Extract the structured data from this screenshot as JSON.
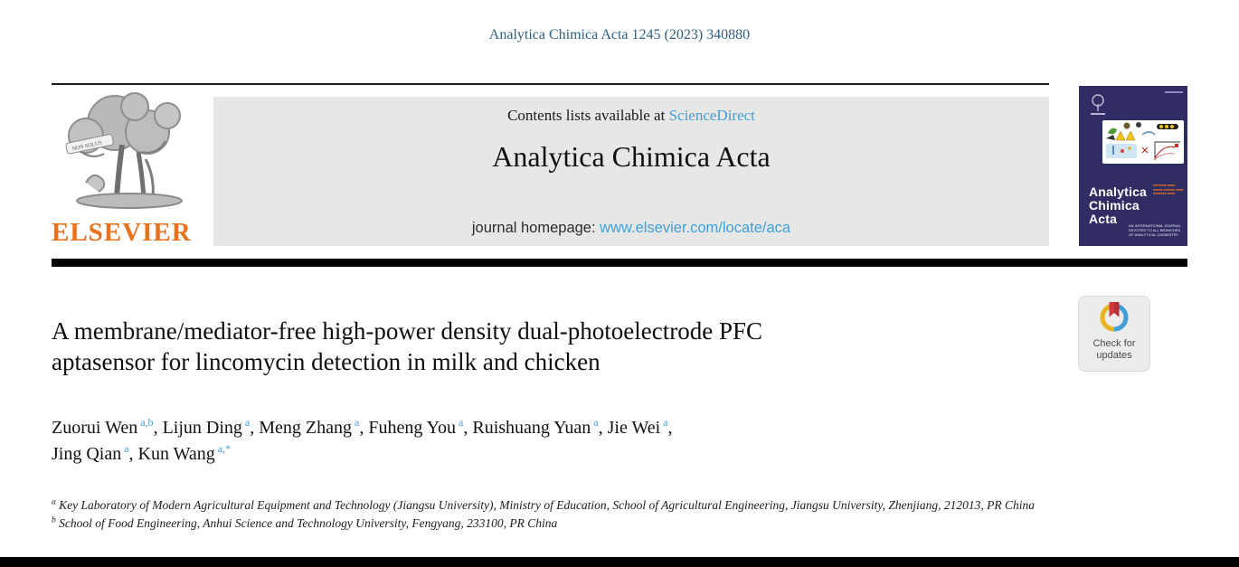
{
  "page": {
    "citation": "Analytica Chimica Acta 1245 (2023) 340880"
  },
  "publisher": {
    "name": "ELSEVIER",
    "motto": "NON SOLUS",
    "orange": "#e9711c"
  },
  "banner": {
    "contents_prefix": "Contents lists available at ",
    "sciencedirect_link": "ScienceDirect",
    "journal_title": "Analytica Chimica Acta",
    "homepage_prefix": "journal homepage: ",
    "homepage_url": "www.elsevier.com/locate/aca",
    "background": "#e7e7e5",
    "link_blue": "#3f9fd8"
  },
  "cover": {
    "title_lines": [
      "Analytica",
      "Chimica",
      "Acta"
    ],
    "subtitle": "AN INTERNATIONAL JOURNAL DEVOTED TO ALL BRANCHES OF ANALYTICAL CHEMISTRY",
    "navy": "#2f2d64"
  },
  "badge": {
    "line1": "Check for",
    "line2": "updates"
  },
  "article": {
    "title": "A membrane/mediator-free high-power density dual-photoelectrode PFC aptasensor for lincomycin detection in milk and chicken",
    "title_lines": [
      "A membrane/mediator-free high-power density dual-photoelectrode PFC",
      "aptasensor for lincomycin detection in milk and chicken"
    ],
    "author_lines": [
      {
        "authors": [
          {
            "name": "Zuorui Wen",
            "sup": "a,b"
          },
          {
            "name": "Lijun Ding",
            "sup": "a"
          },
          {
            "name": "Meng Zhang",
            "sup": "a"
          },
          {
            "name": "Fuheng You",
            "sup": "a"
          },
          {
            "name": "Ruishuang Yuan",
            "sup": "a"
          },
          {
            "name": "Jie Wei",
            "sup": "a"
          }
        ],
        "trail": ","
      },
      {
        "authors": [
          {
            "name": "Jing Qian",
            "sup": "a"
          },
          {
            "name": "Kun Wang",
            "sup": "a,*"
          }
        ],
        "trail": ""
      }
    ],
    "affiliations": [
      {
        "marker": "a",
        "text": "Key Laboratory of Modern Agricultural Equipment and Technology (Jiangsu University), Ministry of Education, School of Agricultural Engineering, Jiangsu University, Zhenjiang, 212013, PR China"
      },
      {
        "marker": "b",
        "text": "School of Food Engineering, Anhui Science and Technology University, Fengyang, 233100, PR China"
      }
    ]
  },
  "colors": {
    "citation_blue": "#2f5f80",
    "link_blue": "#3f9fd8",
    "elsevier_orange": "#e9711c",
    "banner_gray": "#e7e7e5",
    "cover_navy": "#2f2d64",
    "rule_black": "#000000"
  }
}
